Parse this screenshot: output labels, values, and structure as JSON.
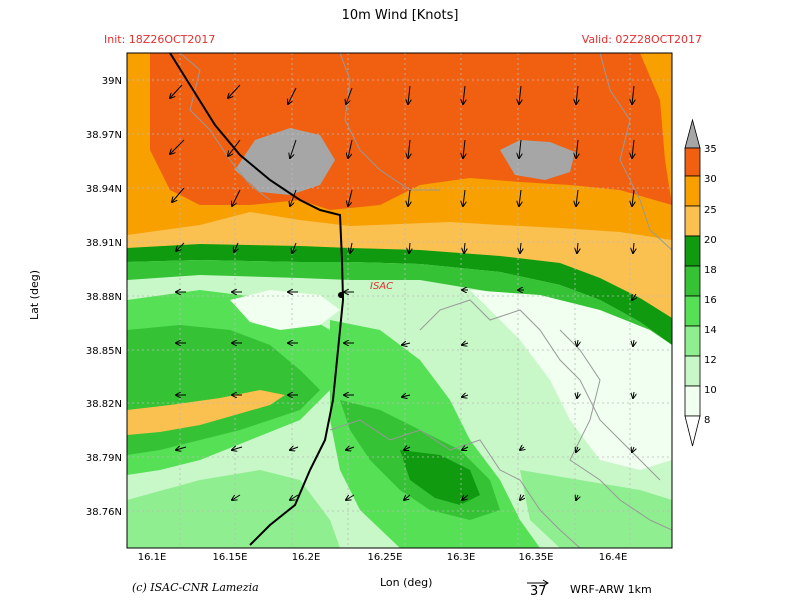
{
  "header": {
    "title": "10m Wind [Knots]",
    "init": "Init: 18Z26OCT2017",
    "valid": "Valid: 02Z28OCT2017"
  },
  "axes": {
    "xlabel": "Lon (deg)",
    "ylabel": "Lat (deg)",
    "x_ticks": [
      "16.1E",
      "16.15E",
      "16.2E",
      "16.25E",
      "16.3E",
      "16.35E",
      "16.4E"
    ],
    "y_ticks": [
      "39N",
      "38.97N",
      "38.94N",
      "38.91N",
      "38.88N",
      "38.85N",
      "38.82N",
      "38.79N",
      "38.76N"
    ]
  },
  "colorbar": {
    "levels": [
      "35",
      "30",
      "25",
      "20",
      "18",
      "16",
      "14",
      "12",
      "10",
      "8"
    ],
    "colors": [
      "#a6a6a6",
      "#f06010",
      "#f7a000",
      "#fac050",
      "#0f9a0f",
      "#35c235",
      "#55e055",
      "#8fee8f",
      "#c8f7c8",
      "#f0fff0"
    ]
  },
  "map": {
    "station_label": "ISAC"
  },
  "footer": {
    "credit": "(c) ISAC-CNR Lamezia",
    "reference_vector": "37",
    "model": "WRF-ARW 1km"
  }
}
